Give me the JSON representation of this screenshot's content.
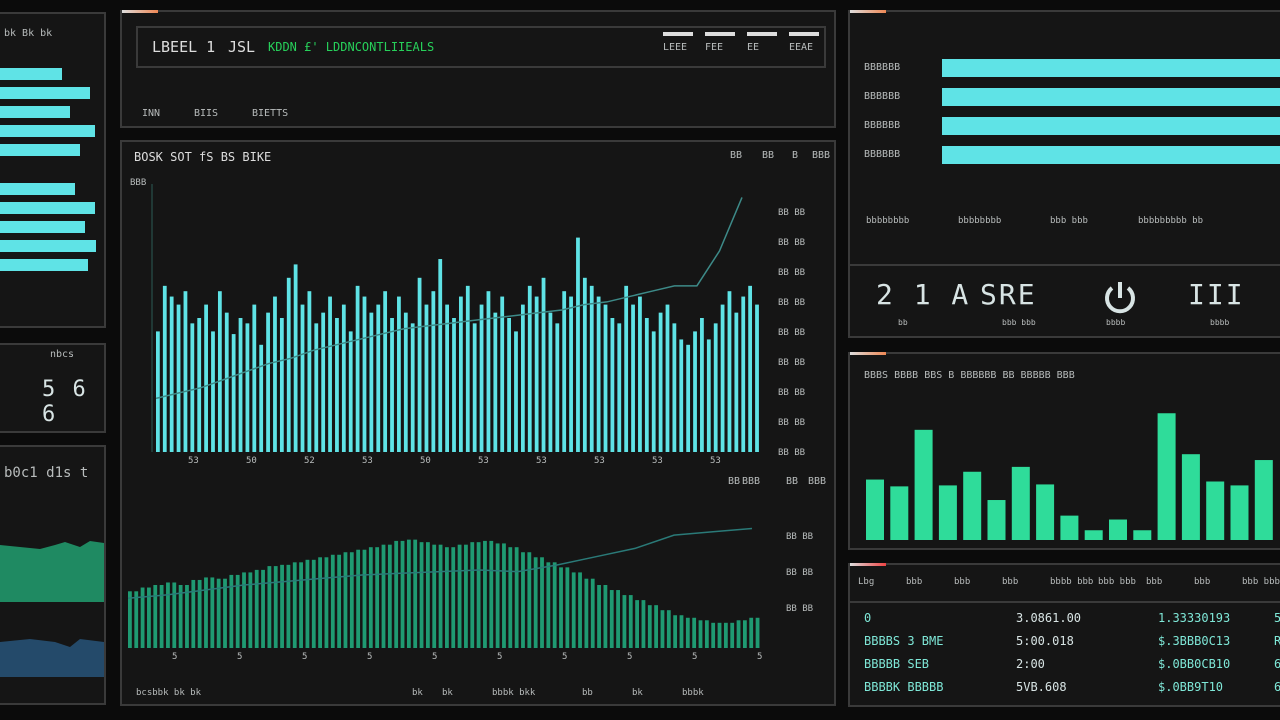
{
  "header": {
    "title": "LBEEL 1",
    "code": "JSL",
    "status": "KDDN £' LDDNCONTLIIEALS",
    "buttons": [
      "LEEE",
      "FEE",
      "EE",
      "EEAE"
    ],
    "tabs": [
      "INN",
      "BIIS",
      "BIETTS"
    ]
  },
  "left": {
    "title": "bk  Bk  bk",
    "counter_label": "nbcs",
    "counter": "5 6 6",
    "chart_title": "b0c1  d1s t"
  },
  "main": {
    "title": "BOSK SOT  fS  BS BIKE",
    "controls": [
      "BB",
      "BB",
      "B",
      "BBB"
    ],
    "y_labels": [
      "BBB",
      "BB BB",
      "BB BB",
      "BB BB",
      "BB BB",
      "BB BB",
      "BB BB",
      "BB BB",
      "BB BB",
      "BB BB"
    ],
    "x_labels": [
      "53",
      "50",
      "52",
      "53",
      "50",
      "53",
      "53",
      "53",
      "53",
      "53"
    ],
    "lower_controls": [
      "BB",
      "BBB",
      "BB",
      "BBB"
    ],
    "lower_y_labels": [
      "BB BB",
      "BB BB",
      "BB BB"
    ],
    "lower_x_labels": [
      "5",
      "5",
      "5",
      "5",
      "5",
      "5",
      "5",
      "5",
      "5",
      "5"
    ],
    "footer": [
      "bcsbbk bk bk",
      "bk",
      "bk",
      "bbbk bkk",
      "bb",
      "bk",
      "bbbk"
    ]
  },
  "right_top": {
    "bar_labels": [
      "BBBBBB",
      "BBBBBB",
      "BBBBBB",
      "BBBBBB"
    ],
    "bar_values": [
      100,
      100,
      100,
      100
    ],
    "stat_labels": [
      "bbbbbbbb",
      "bbbbbbbb",
      "bbb bbb",
      "bbbbbbbbb bb"
    ],
    "metrics": [
      {
        "value": "2 1 A",
        "label": "bb"
      },
      {
        "value": "SRE",
        "label": "bbb bbb"
      },
      {
        "value": "",
        "label": "bbbb",
        "icon": "power-icon"
      },
      {
        "value": "III",
        "label": "bbbb"
      }
    ]
  },
  "right_chart": {
    "title": "BBBS   BBBB BBS   B  BBBBBB BB BBBBB   BBB"
  },
  "table": {
    "headers": [
      "Lbg",
      "bbb",
      "bbb",
      "bbb",
      "bbbb bbb",
      "bbb bbb",
      "bbb",
      "bbb",
      "bbb bbbb"
    ],
    "rows": [
      [
        "0",
        "3.0861.00",
        "1.33330193",
        "5"
      ],
      [
        "BBBBS 3 BME",
        "5:00.018",
        "$.3BBB0C13",
        "R"
      ],
      [
        "BBBBB  SEB",
        "2:00",
        "$.0BB0CB10",
        "6"
      ],
      [
        "BBBBK  BBBBB",
        "5VB.608",
        "$.0BB9T10",
        "6"
      ]
    ]
  },
  "colors": {
    "cyan": "#5fe3e6",
    "green": "#2fdc9a",
    "area": "#1f9a72",
    "bg": "#151515"
  },
  "chart_data": [
    {
      "type": "bar",
      "title": "",
      "ylim": [
        0,
        100
      ],
      "values": [
        45,
        62,
        58,
        55,
        60,
        48,
        50,
        55,
        45,
        60,
        52,
        44,
        50,
        48,
        55,
        40,
        52,
        58,
        50,
        65,
        70,
        55,
        60,
        48,
        52,
        58,
        50,
        55,
        45,
        62,
        58,
        52,
        55,
        60,
        50,
        58,
        52,
        48,
        65,
        55,
        60,
        72,
        55,
        50,
        58,
        62,
        48,
        55,
        60,
        52,
        58,
        50,
        45,
        55,
        62,
        58,
        65,
        52,
        48,
        60,
        58,
        80,
        65,
        62,
        58,
        55,
        50,
        48,
        62,
        55,
        58,
        50,
        45,
        52,
        55,
        48,
        42,
        40,
        45,
        50,
        42,
        48,
        55,
        60,
        52,
        58,
        62,
        55
      ],
      "line": [
        20,
        22,
        24,
        27,
        30,
        33,
        35,
        38,
        40,
        42,
        44,
        46,
        47,
        48,
        49,
        50,
        51,
        52,
        53,
        55,
        56,
        58,
        60,
        62,
        62,
        75,
        95
      ]
    },
    {
      "type": "bar",
      "title": "",
      "ylim": [
        0,
        140
      ],
      "values": [
        62,
        55,
        113,
        56,
        70,
        41,
        75,
        57,
        25,
        10,
        21,
        10,
        130,
        88,
        60,
        56,
        82
      ]
    },
    {
      "type": "area",
      "title": "",
      "ylim": [
        0,
        100
      ],
      "values": [
        45,
        48,
        50,
        52,
        50,
        54,
        56,
        55,
        58,
        60,
        62,
        65,
        66,
        68,
        70,
        72,
        74,
        76,
        78,
        80,
        82,
        85,
        86,
        84,
        82,
        80,
        82,
        84,
        85,
        83,
        80,
        76,
        72,
        68,
        64,
        60,
        55,
        50,
        46,
        42,
        38,
        34,
        30,
        26,
        24,
        22,
        20,
        20,
        22,
        24
      ],
      "line": [
        30,
        32,
        35,
        38,
        40,
        42,
        44,
        45,
        46,
        47,
        46,
        50,
        55,
        60,
        68,
        70,
        72
      ]
    },
    {
      "type": "bar",
      "title": "",
      "values": [
        75,
        88,
        70,
        80,
        70,
        88,
        72,
        60,
        85,
        95
      ]
    }
  ]
}
